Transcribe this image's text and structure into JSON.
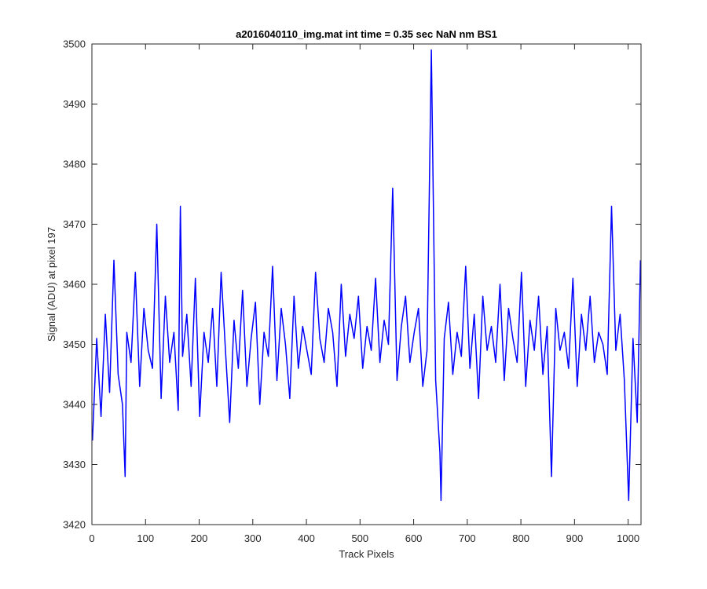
{
  "chart_data": {
    "type": "line",
    "title": "a2016040110_img.mat int time = 0.35 sec  NaN nm BS1",
    "xlabel": "Track Pixels",
    "ylabel": "Signal (ADU) at pixel 197",
    "xlim": [
      0,
      1024
    ],
    "ylim": [
      3420,
      3500
    ],
    "xticks": [
      0,
      100,
      200,
      300,
      400,
      500,
      600,
      700,
      800,
      900,
      1000
    ],
    "yticks": [
      3420,
      3430,
      3440,
      3450,
      3460,
      3470,
      3480,
      3490,
      3500
    ],
    "grid": false,
    "line_color": "#0000ff",
    "series": [
      {
        "x": [
          1,
          9,
          17,
          25,
          33,
          41,
          49,
          57,
          62,
          65,
          73,
          81,
          89,
          97,
          105,
          113,
          121,
          129,
          137,
          145,
          153,
          161,
          165,
          169,
          177,
          185,
          193,
          201,
          209,
          217,
          225,
          233,
          241,
          249,
          257,
          265,
          273,
          281,
          289,
          297,
          305,
          313,
          321,
          329,
          337,
          345,
          353,
          361,
          369,
          377,
          385,
          393,
          401,
          409,
          417,
          425,
          433,
          441,
          449,
          457,
          465,
          473,
          481,
          489,
          497,
          505,
          513,
          521,
          529,
          537,
          545,
          553,
          561,
          569,
          577,
          585,
          593,
          601,
          609,
          617,
          625,
          633,
          641,
          649,
          651,
          657,
          665,
          673,
          681,
          689,
          697,
          705,
          713,
          721,
          729,
          737,
          745,
          753,
          761,
          769,
          777,
          785,
          793,
          801,
          809,
          817,
          825,
          833,
          841,
          849,
          857,
          865,
          873,
          881,
          889,
          897,
          905,
          913,
          921,
          929,
          937,
          945,
          953,
          961,
          969,
          977,
          985,
          993,
          1001,
          1009,
          1017,
          1023
        ],
        "y": [
          3434,
          3451,
          3438,
          3455,
          3442,
          3464,
          3445,
          3440,
          3428,
          3452,
          3447,
          3462,
          3443,
          3456,
          3449,
          3446,
          3470,
          3441,
          3458,
          3447,
          3452,
          3439,
          3473,
          3448,
          3455,
          3443,
          3461,
          3438,
          3452,
          3447,
          3456,
          3443,
          3462,
          3449,
          3437,
          3454,
          3446,
          3459,
          3443,
          3451,
          3457,
          3440,
          3452,
          3448,
          3463,
          3444,
          3456,
          3450,
          3441,
          3458,
          3446,
          3453,
          3449,
          3445,
          3462,
          3451,
          3447,
          3456,
          3452,
          3443,
          3460,
          3448,
          3455,
          3451,
          3458,
          3446,
          3453,
          3449,
          3461,
          3447,
          3454,
          3450,
          3476,
          3444,
          3453,
          3458,
          3447,
          3452,
          3456,
          3443,
          3449,
          3499,
          3444,
          3432,
          3424,
          3451,
          3457,
          3445,
          3452,
          3448,
          3463,
          3446,
          3455,
          3441,
          3458,
          3449,
          3453,
          3447,
          3460,
          3444,
          3456,
          3451,
          3447,
          3462,
          3443,
          3454,
          3449,
          3458,
          3445,
          3453,
          3428,
          3456,
          3449,
          3452,
          3446,
          3461,
          3443,
          3455,
          3449,
          3458,
          3447,
          3452,
          3450,
          3445,
          3473,
          3449,
          3455,
          3444,
          3424,
          3451,
          3437,
          3464
        ]
      }
    ]
  }
}
